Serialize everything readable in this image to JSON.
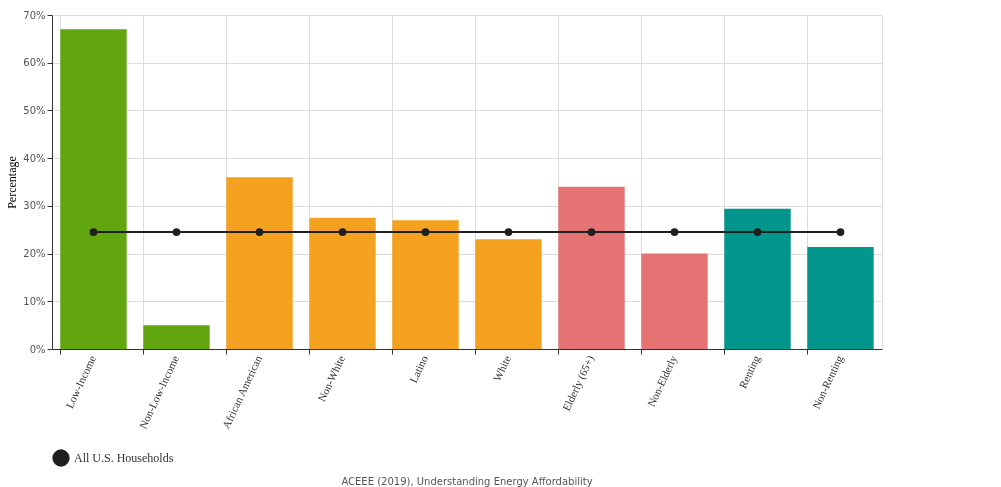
{
  "chart_data": {
    "type": "bar",
    "categories": [
      "Low-Income",
      "Non-Low-Income",
      "African American",
      "Non-White",
      "Latino",
      "White",
      "Elderly (65+)",
      "Non-Elderly",
      "Renting",
      "Non-Renting"
    ],
    "series": [
      {
        "values": [
          67,
          5,
          36,
          27.5,
          27,
          23,
          34,
          20,
          29.4,
          21.4
        ],
        "colors": [
          "#62a60f",
          "#62a60f",
          "#f4a11f",
          "#f4a11f",
          "#f4a11f",
          "#f4a11f",
          "#e57373",
          "#e57373",
          "#03968c",
          "#03968c"
        ]
      },
      {
        "type": "line",
        "name": "All U.S. Households",
        "color": "#1f1f1f",
        "marker": "circle",
        "values": [
          24.5,
          24.5,
          24.5,
          24.5,
          24.5,
          24.5,
          24.5,
          24.5,
          24.5,
          24.5
        ]
      }
    ],
    "ylabel": "Percentage",
    "ylim": [
      0,
      70
    ],
    "yticks": [
      {
        "value": 0,
        "label": "0%"
      },
      {
        "value": 10,
        "label": "10%"
      },
      {
        "value": 20,
        "label": "20%"
      },
      {
        "value": 30,
        "label": "30%"
      },
      {
        "value": 40,
        "label": "40%"
      },
      {
        "value": 50,
        "label": "50%"
      },
      {
        "value": 60,
        "label": "60%"
      },
      {
        "value": 70,
        "label": "70%"
      }
    ],
    "grid": true,
    "legend": "bottom left",
    "annotations": [
      "ACEEE (2019), Understanding Energy Affordability"
    ]
  }
}
